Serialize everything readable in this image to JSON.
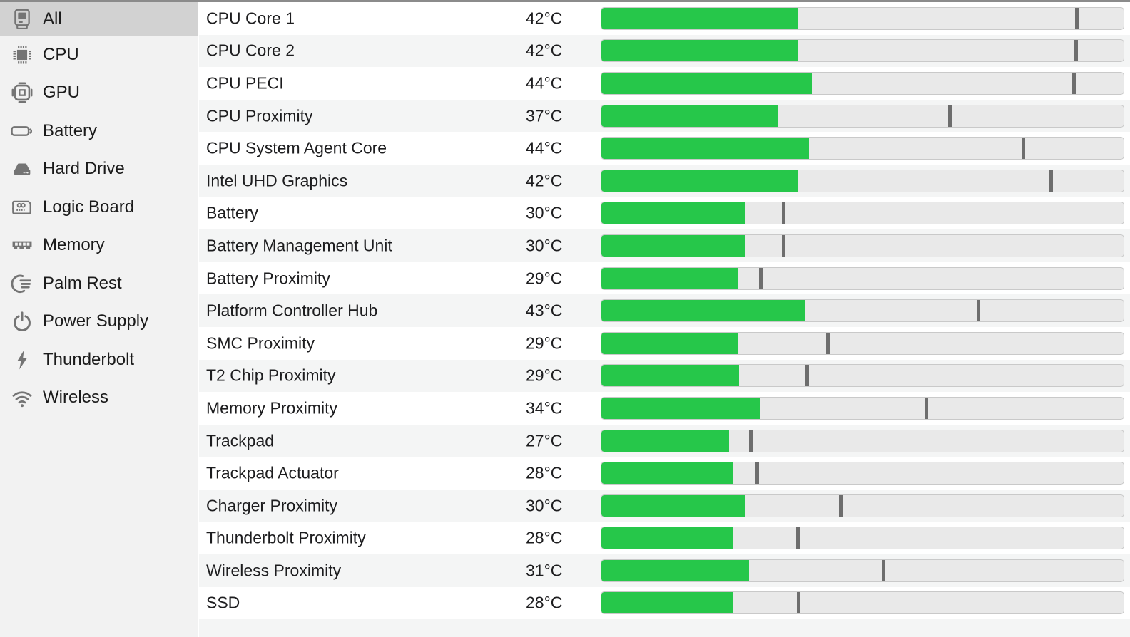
{
  "sidebar": {
    "items": [
      {
        "label": "All",
        "icon": "classic-mac-icon",
        "selected": true
      },
      {
        "label": "CPU",
        "icon": "cpu-chip-icon",
        "selected": false
      },
      {
        "label": "GPU",
        "icon": "gpu-chip-icon",
        "selected": false
      },
      {
        "label": "Battery",
        "icon": "battery-icon",
        "selected": false
      },
      {
        "label": "Hard Drive",
        "icon": "hard-drive-icon",
        "selected": false
      },
      {
        "label": "Logic Board",
        "icon": "logic-board-icon",
        "selected": false
      },
      {
        "label": "Memory",
        "icon": "memory-icon",
        "selected": false
      },
      {
        "label": "Palm Rest",
        "icon": "palm-rest-icon",
        "selected": false
      },
      {
        "label": "Power Supply",
        "icon": "power-supply-icon",
        "selected": false
      },
      {
        "label": "Thunderbolt",
        "icon": "thunderbolt-icon",
        "selected": false
      },
      {
        "label": "Wireless",
        "icon": "wireless-icon",
        "selected": false
      }
    ]
  },
  "main": {
    "rows": [
      {
        "name": "CPU Core 1",
        "temp": "42°C",
        "value_c": 42,
        "bar_percent": 37.5,
        "tick_percent": 91.0
      },
      {
        "name": "CPU Core 2",
        "temp": "42°C",
        "value_c": 42,
        "bar_percent": 37.5,
        "tick_percent": 90.8
      },
      {
        "name": "CPU PECI",
        "temp": "44°C",
        "value_c": 44,
        "bar_percent": 40.3,
        "tick_percent": 90.5
      },
      {
        "name": "CPU Proximity",
        "temp": "37°C",
        "value_c": 37,
        "bar_percent": 33.7,
        "tick_percent": 66.6
      },
      {
        "name": "CPU System Agent Core",
        "temp": "44°C",
        "value_c": 44,
        "bar_percent": 39.8,
        "tick_percent": 80.7
      },
      {
        "name": "Intel UHD Graphics",
        "temp": "42°C",
        "value_c": 42,
        "bar_percent": 37.5,
        "tick_percent": 86.1
      },
      {
        "name": "Battery",
        "temp": "30°C",
        "value_c": 30,
        "bar_percent": 27.4,
        "tick_percent": 34.9
      },
      {
        "name": "Battery Management Unit",
        "temp": "30°C",
        "value_c": 30,
        "bar_percent": 27.4,
        "tick_percent": 34.9
      },
      {
        "name": "Battery Proximity",
        "temp": "29°C",
        "value_c": 29,
        "bar_percent": 26.2,
        "tick_percent": 30.5
      },
      {
        "name": "Platform Controller Hub",
        "temp": "43°C",
        "value_c": 43,
        "bar_percent": 39.0,
        "tick_percent": 72.1
      },
      {
        "name": "SMC Proximity",
        "temp": "29°C",
        "value_c": 29,
        "bar_percent": 26.2,
        "tick_percent": 43.3
      },
      {
        "name": "T2 Chip Proximity",
        "temp": "29°C",
        "value_c": 29,
        "bar_percent": 26.4,
        "tick_percent": 39.4
      },
      {
        "name": "Memory Proximity",
        "temp": "34°C",
        "value_c": 34,
        "bar_percent": 30.5,
        "tick_percent": 62.1
      },
      {
        "name": "Trackpad",
        "temp": "27°C",
        "value_c": 27,
        "bar_percent": 24.4,
        "tick_percent": 28.6
      },
      {
        "name": "Trackpad Actuator",
        "temp": "28°C",
        "value_c": 28,
        "bar_percent": 25.3,
        "tick_percent": 29.8
      },
      {
        "name": "Charger Proximity",
        "temp": "30°C",
        "value_c": 30,
        "bar_percent": 27.4,
        "tick_percent": 45.8
      },
      {
        "name": "Thunderbolt Proximity",
        "temp": "28°C",
        "value_c": 28,
        "bar_percent": 25.2,
        "tick_percent": 37.5
      },
      {
        "name": "Wireless Proximity",
        "temp": "31°C",
        "value_c": 31,
        "bar_percent": 28.3,
        "tick_percent": 54.0
      },
      {
        "name": "SSD",
        "temp": "28°C",
        "value_c": 28,
        "bar_percent": 25.3,
        "tick_percent": 37.7
      }
    ]
  },
  "colors": {
    "bar_fill": "#26c74a",
    "bar_track": "#e9e9e9",
    "bar_tick": "#6d6d6d",
    "row_alt": "#f4f5f5",
    "sidebar_bg": "#f2f2f2",
    "sidebar_selected": "#d2d2d2",
    "top_line": "#8b8b8b"
  }
}
